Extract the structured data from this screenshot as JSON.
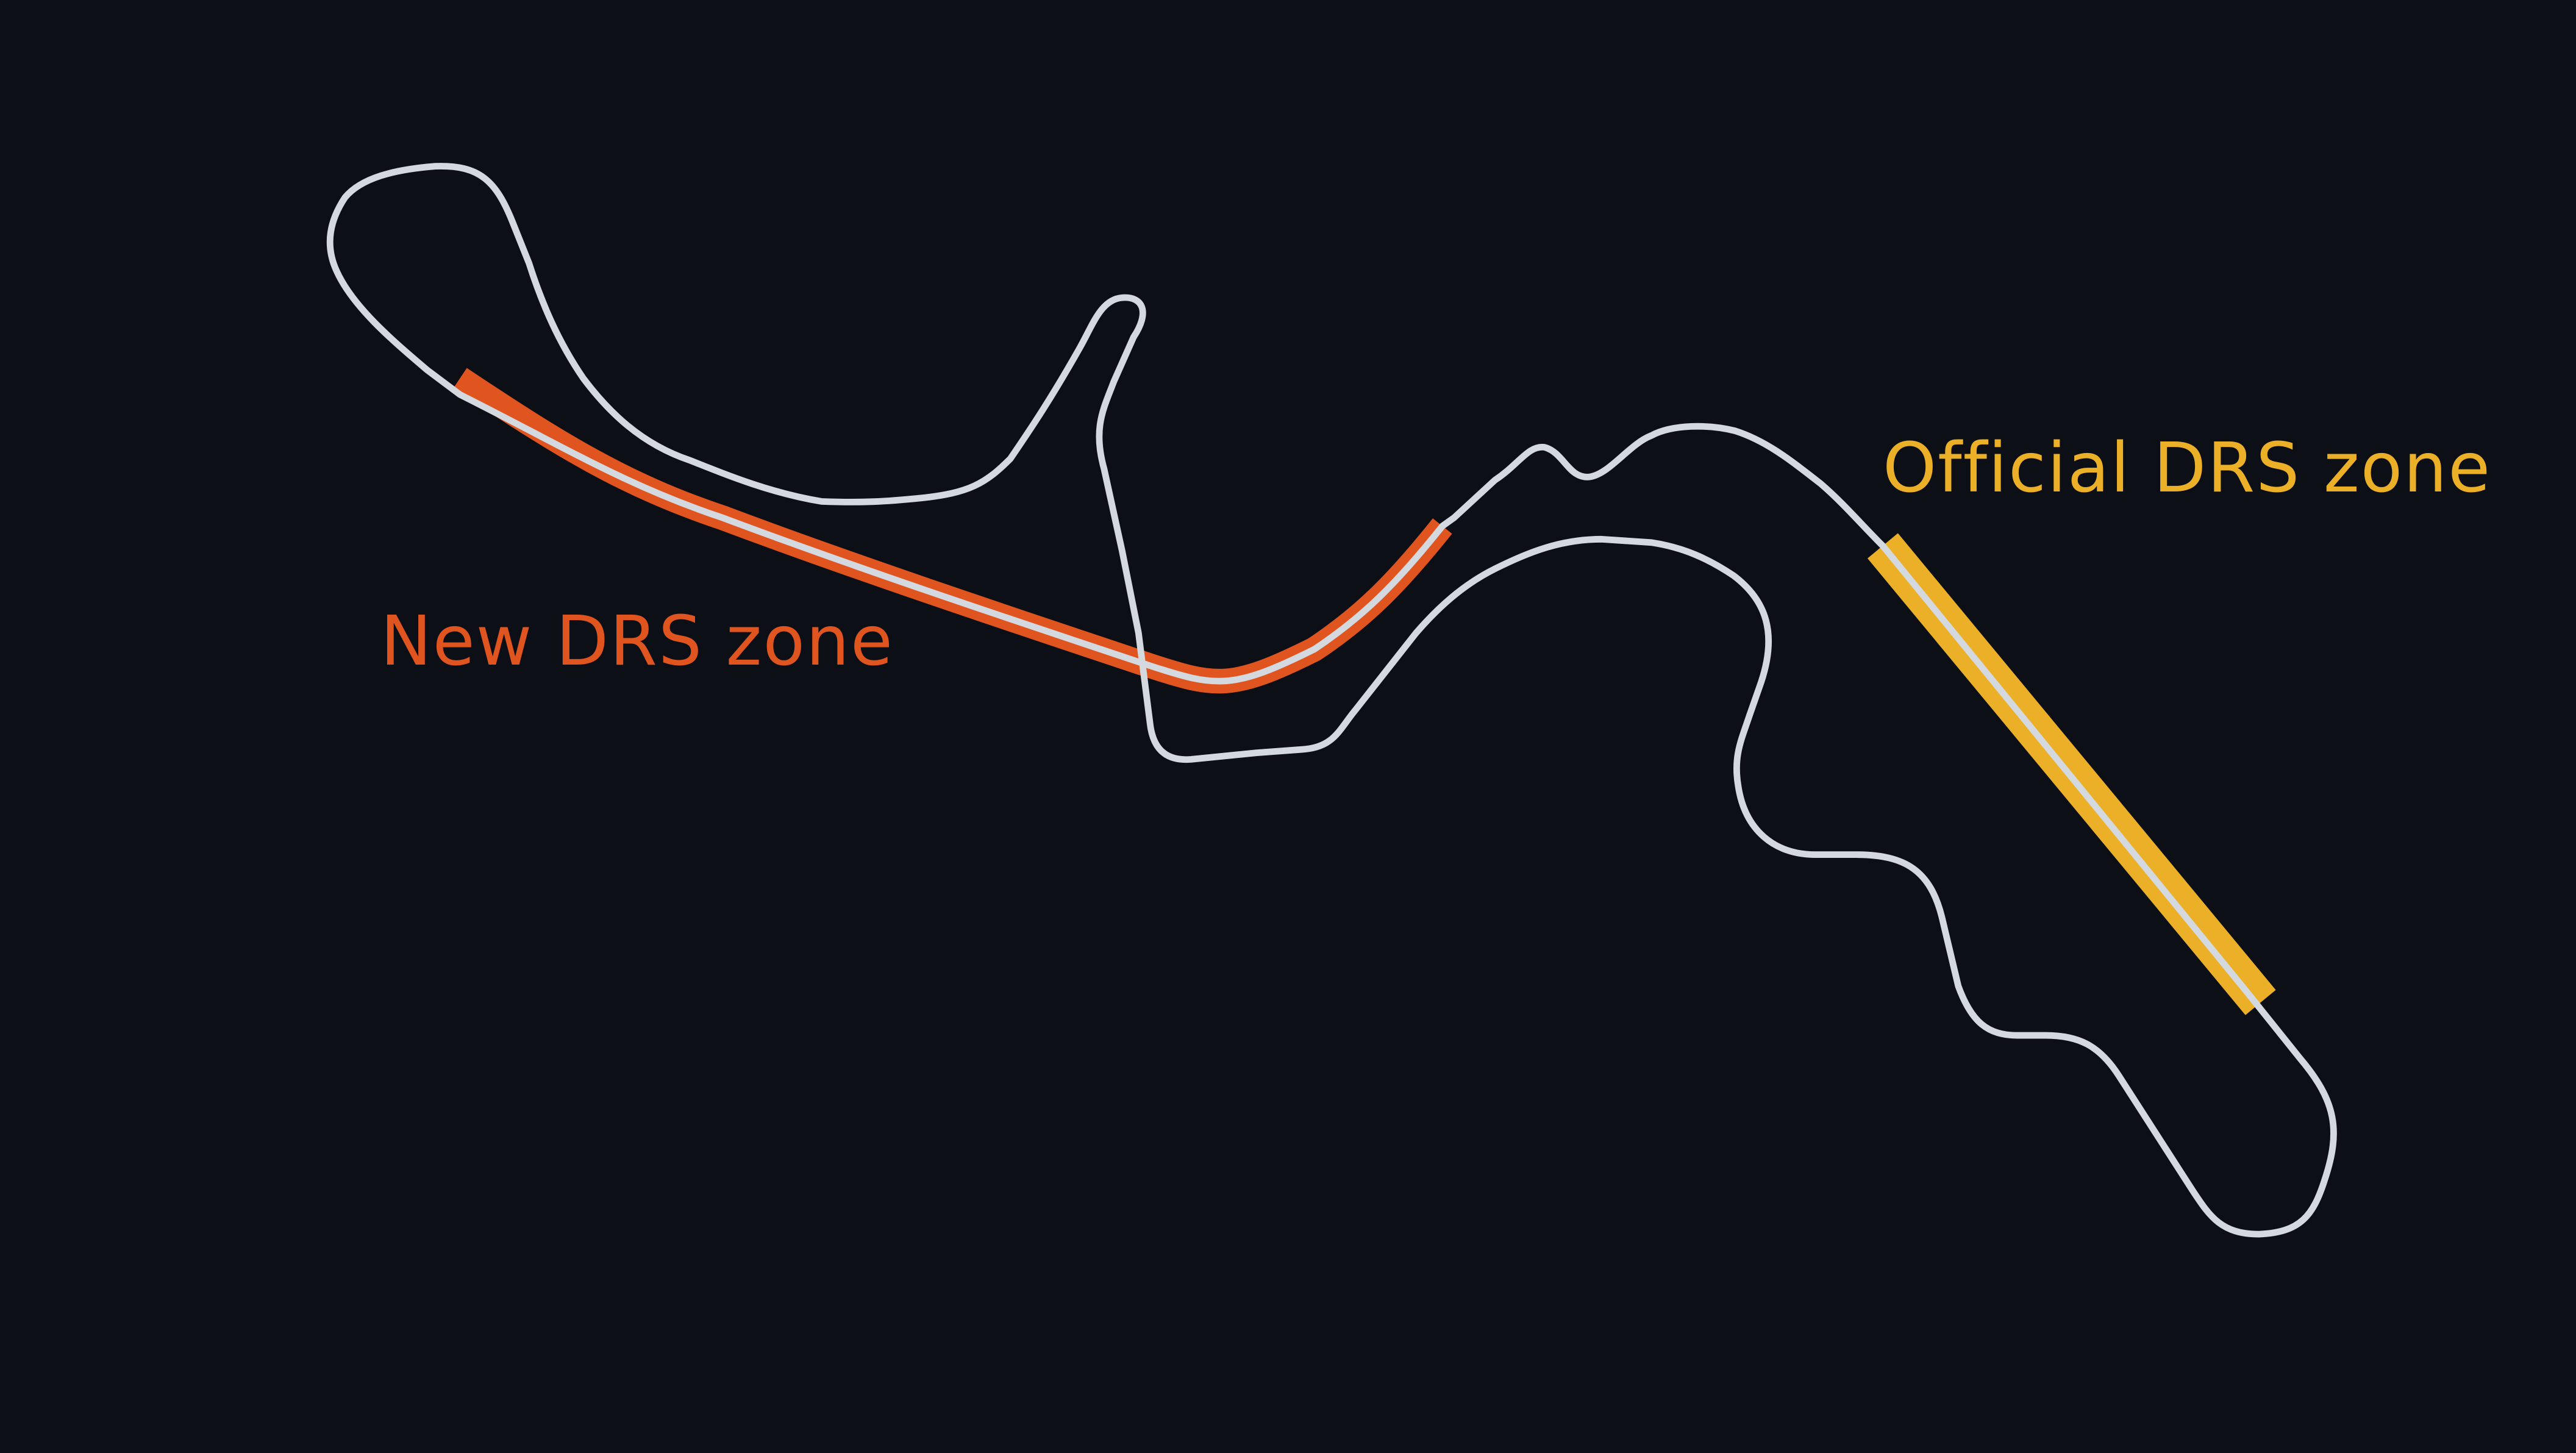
{
  "colors": {
    "background": "#0c0f16",
    "track": "#d4d9e0",
    "new_drs": "#e0541f",
    "official_drs": "#ebb027"
  },
  "labels": {
    "new_drs_zone": "New DRS zone",
    "official_drs_zone": "Official DRS zone"
  }
}
